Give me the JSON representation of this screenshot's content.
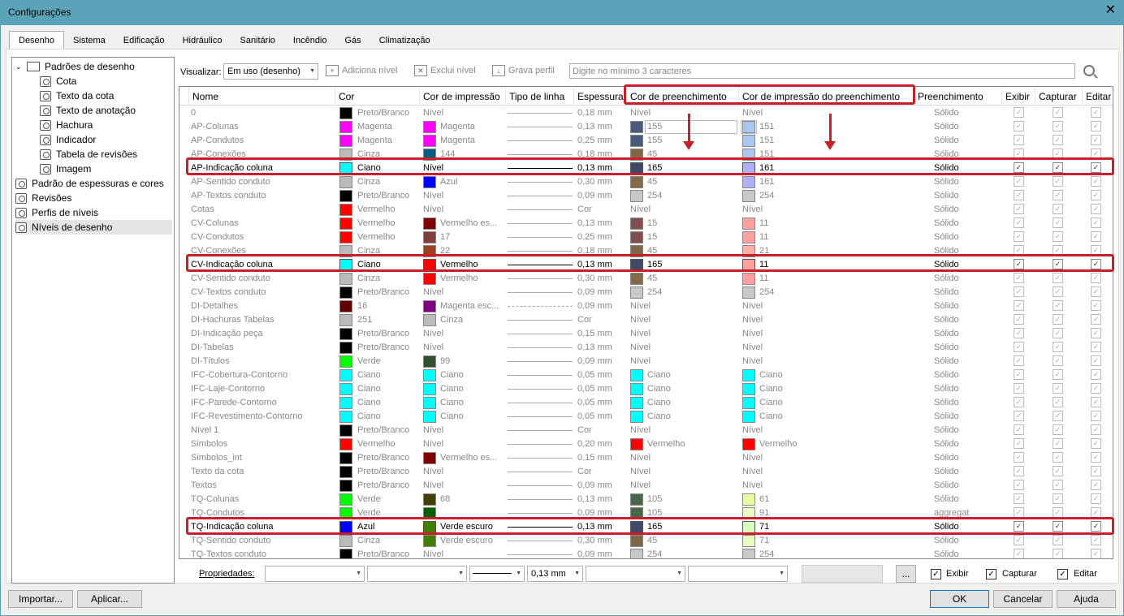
{
  "window": {
    "title": "Configurações"
  },
  "tabs": [
    "Desenho",
    "Sistema",
    "Edificação",
    "Hidráulico",
    "Sanitário",
    "Incêndio",
    "Gás",
    "Climatização"
  ],
  "tree": {
    "root": "Padrões de desenho",
    "children": [
      "Cota",
      "Texto da cota",
      "Texto de anotação",
      "Hachura",
      "Indicador",
      "Tabela de revisões",
      "Imagem"
    ],
    "top": [
      "Padrão de espessuras e cores",
      "Revisões",
      "Perfis de níveis",
      "Níveis de desenho"
    ]
  },
  "toolbar": {
    "visualizar_label": "Visualizar:",
    "visualizar_value": "Em uso (desenho)",
    "add_level": "Adiciona nível",
    "delete_level": "Exclui nível",
    "save_profile": "Grava perfil",
    "search_placeholder": "Digite no mínimo 3 caracteres"
  },
  "columns": [
    "Nome",
    "Cor",
    "Cor de impressão",
    "Tipo de linha",
    "Espessura",
    "Cor de preenchimento",
    "Cor de impressão do preenchimento",
    "Preenchimento",
    "Exibir",
    "Capturar",
    "Editar"
  ],
  "rows": [
    {
      "n": "0",
      "c": "#000000",
      "ct": "Preto/Branco",
      "p": "",
      "pt": "Nível",
      "l": "solid",
      "e": "0,18 mm",
      "f": "",
      "ft": "Nível",
      "pf": "",
      "pft": "Nível",
      "fill": "Sólido"
    },
    {
      "n": "AP-Colunas",
      "c": "#ff00ff",
      "ct": "Magenta",
      "p": "#ff00ff",
      "pt": "Magenta",
      "l": "solid",
      "e": "0,13 mm",
      "f": "#4a5a7a",
      "ft": "155",
      "pf": "#a8c8f0",
      "pft": "151",
      "fill": "Sólido",
      "box": true
    },
    {
      "n": "AP-Condutos",
      "c": "#ff00ff",
      "ct": "Magenta",
      "p": "#ff00ff",
      "pt": "Magenta",
      "l": "solid",
      "e": "0,25 mm",
      "f": "#4a5a7a",
      "ft": "155",
      "pf": "#a8c8f0",
      "pft": "151",
      "fill": "Sólido"
    },
    {
      "n": "AP-Conexões",
      "c": "#bbbbbb",
      "ct": "Cinza",
      "p": "#006080",
      "pt": "144",
      "l": "solid",
      "e": "0,18 mm",
      "f": "#806848",
      "ft": "45",
      "pf": "#a8c8f0",
      "pft": "151",
      "fill": "Sólido"
    },
    {
      "n": "AP-Indicação coluna",
      "c": "#00ffff",
      "ct": "Ciano",
      "p": "",
      "pt": "Nível",
      "l": "solid",
      "e": "0,13 mm",
      "f": "#404868",
      "ft": "165",
      "pf": "#b0b0f8",
      "pft": "161",
      "fill": "Sólido",
      "act": true
    },
    {
      "n": "AP-Sentido conduto",
      "c": "#bbbbbb",
      "ct": "Cinza",
      "p": "#0000ff",
      "pt": "Azul",
      "l": "solid",
      "e": "0,30 mm",
      "f": "#806848",
      "ft": "45",
      "pf": "#b0b0f8",
      "pft": "161",
      "fill": "Sólido"
    },
    {
      "n": "AP-Textos conduto",
      "c": "#000000",
      "ct": "Preto/Branco",
      "p": "",
      "pt": "Nível",
      "l": "solid",
      "e": "0,09 mm",
      "f": "#c8c8c8",
      "ft": "254",
      "pf": "#c8c8c8",
      "pft": "254",
      "fill": "Sólido"
    },
    {
      "n": "Cotas",
      "c": "#ff0000",
      "ct": "Vermelho",
      "p": "",
      "pt": "Nível",
      "l": "solid",
      "e": "Cor",
      "f": "",
      "ft": "Nível",
      "pf": "",
      "pft": "Nível",
      "fill": "Sólido"
    },
    {
      "n": "CV-Colunas",
      "c": "#ff0000",
      "ct": "Vermelho",
      "p": "#800000",
      "pt": "Vermelho es...",
      "l": "solid",
      "e": "0,13 mm",
      "f": "#805050",
      "ft": "15",
      "pf": "#ffa0a0",
      "pft": "11",
      "fill": "Sólido"
    },
    {
      "n": "CV-Condutos",
      "c": "#ff0000",
      "ct": "Vermelho",
      "p": "#804040",
      "pt": "17",
      "l": "solid",
      "e": "0,25 mm",
      "f": "#805050",
      "ft": "15",
      "pf": "#ffa0a0",
      "pft": "11",
      "fill": "Sólido"
    },
    {
      "n": "CV-Conexões",
      "c": "#bbbbbb",
      "ct": "Cinza",
      "p": "#a04020",
      "pt": "22",
      "l": "solid",
      "e": "0,18 mm",
      "f": "#806848",
      "ft": "45",
      "pf": "#ffb0a0",
      "pft": "21",
      "fill": "Sólido"
    },
    {
      "n": "CV-Indicação coluna",
      "c": "#00ffff",
      "ct": "Ciano",
      "p": "#ff0000",
      "pt": "Vermelho",
      "l": "solid",
      "e": "0,13 mm",
      "f": "#404868",
      "ft": "165",
      "pf": "#ffa0a0",
      "pft": "11",
      "fill": "Sólido",
      "act": true
    },
    {
      "n": "CV-Sentido conduto",
      "c": "#bbbbbb",
      "ct": "Cinza",
      "p": "#ff0000",
      "pt": "Vermelho",
      "l": "solid",
      "e": "0,30 mm",
      "f": "#806848",
      "ft": "45",
      "pf": "#ffa0a0",
      "pft": "11",
      "fill": "Sólido"
    },
    {
      "n": "CV-Textos conduto",
      "c": "#000000",
      "ct": "Preto/Branco",
      "p": "",
      "pt": "Nível",
      "l": "solid",
      "e": "0,09 mm",
      "f": "#c8c8c8",
      "ft": "254",
      "pf": "#c8c8c8",
      "pft": "254",
      "fill": "Sólido"
    },
    {
      "n": "DI-Detalhes",
      "c": "#600000",
      "ct": "16",
      "p": "#800080",
      "pt": "Magenta esc...",
      "l": "dash",
      "e": "0,09 mm",
      "f": "",
      "ft": "Nível",
      "pf": "",
      "pft": "Nível",
      "fill": "Sólido"
    },
    {
      "n": "DI-Hachuras Tabelas",
      "c": "#bbbbbb",
      "ct": "251",
      "p": "#bbbbbb",
      "pt": "Cinza",
      "l": "solid",
      "e": "Cor",
      "f": "",
      "ft": "Nível",
      "pf": "",
      "pft": "Nível",
      "fill": "Sólido"
    },
    {
      "n": "DI-Indicação peça",
      "c": "#000000",
      "ct": "Preto/Branco",
      "p": "",
      "pt": "Nível",
      "l": "solid",
      "e": "0,15 mm",
      "f": "",
      "ft": "Nível",
      "pf": "",
      "pft": "Nível",
      "fill": "Sólido"
    },
    {
      "n": "DI-Tabelas",
      "c": "#000000",
      "ct": "Preto/Branco",
      "p": "",
      "pt": "Nível",
      "l": "solid",
      "e": "0,13 mm",
      "f": "",
      "ft": "Nível",
      "pf": "",
      "pft": "Nível",
      "fill": "Sólido"
    },
    {
      "n": "DI-Títulos",
      "c": "#00ff00",
      "ct": "Verde",
      "p": "#305030",
      "pt": "99",
      "l": "solid",
      "e": "0,09 mm",
      "f": "",
      "ft": "Nível",
      "pf": "",
      "pft": "Nível",
      "fill": "Sólido"
    },
    {
      "n": "IFC-Cobertura-Contorno",
      "c": "#00ffff",
      "ct": "Ciano",
      "p": "#00ffff",
      "pt": "Ciano",
      "l": "solid",
      "e": "0,05 mm",
      "f": "#00ffff",
      "ft": "Ciano",
      "pf": "#00ffff",
      "pft": "Ciano",
      "fill": "Sólido"
    },
    {
      "n": "IFC-Laje-Contorno",
      "c": "#00ffff",
      "ct": "Ciano",
      "p": "#00ffff",
      "pt": "Ciano",
      "l": "solid",
      "e": "0,05 mm",
      "f": "#00ffff",
      "ft": "Ciano",
      "pf": "#00ffff",
      "pft": "Ciano",
      "fill": "Sólido"
    },
    {
      "n": "IFC-Parede-Contorno",
      "c": "#00ffff",
      "ct": "Ciano",
      "p": "#00ffff",
      "pt": "Ciano",
      "l": "solid",
      "e": "0,05 mm",
      "f": "#00ffff",
      "ft": "Ciano",
      "pf": "#00ffff",
      "pft": "Ciano",
      "fill": "Sólido"
    },
    {
      "n": "IFC-Revestimento-Contorno",
      "c": "#00ffff",
      "ct": "Ciano",
      "p": "#00ffff",
      "pt": "Ciano",
      "l": "solid",
      "e": "0,05 mm",
      "f": "#00ffff",
      "ft": "Ciano",
      "pf": "#00ffff",
      "pft": "Ciano",
      "fill": "Sólido"
    },
    {
      "n": "Nível 1",
      "c": "#000000",
      "ct": "Preto/Branco",
      "p": "",
      "pt": "Nível",
      "l": "solid",
      "e": "Cor",
      "f": "",
      "ft": "Nível",
      "pf": "",
      "pft": "Nível",
      "fill": "Sólido"
    },
    {
      "n": "Simbolos",
      "c": "#ff0000",
      "ct": "Vermelho",
      "p": "",
      "pt": "Nível",
      "l": "solid",
      "e": "0,20 mm",
      "f": "#ff0000",
      "ft": "Vermelho",
      "pf": "#ff0000",
      "pft": "Vermelho",
      "fill": "Sólido"
    },
    {
      "n": "Simbolos_int",
      "c": "#000000",
      "ct": "Preto/Branco",
      "p": "#800000",
      "pt": "Vermelho es...",
      "l": "solid",
      "e": "0,15 mm",
      "f": "",
      "ft": "Nível",
      "pf": "",
      "pft": "Nível",
      "fill": "Sólido"
    },
    {
      "n": "Texto da cota",
      "c": "#000000",
      "ct": "Preto/Branco",
      "p": "",
      "pt": "Nível",
      "l": "solid",
      "e": "Cor",
      "f": "",
      "ft": "Nível",
      "pf": "",
      "pft": "Nível",
      "fill": "Sólido"
    },
    {
      "n": "Textos",
      "c": "#000000",
      "ct": "Preto/Branco",
      "p": "",
      "pt": "Nível",
      "l": "solid",
      "e": "0,09 mm",
      "f": "",
      "ft": "Nível",
      "pf": "",
      "pft": "Nível",
      "fill": "Sólido"
    },
    {
      "n": "TQ-Colunas",
      "c": "#00ff00",
      "ct": "Verde",
      "p": "#404000",
      "pt": "68",
      "l": "solid",
      "e": "0,13 mm",
      "f": "#486848",
      "ft": "105",
      "pf": "#e8ffa0",
      "pft": "61",
      "fill": "Sólido"
    },
    {
      "n": "TQ-Condutos",
      "c": "#00ff00",
      "ct": "Verde",
      "p": "#006000",
      "pt": "",
      "l": "solid",
      "e": "0,09 mm",
      "f": "#486848",
      "ft": "105",
      "pf": "#e8ffc0",
      "pft": "91",
      "fill": "aggregat"
    },
    {
      "n": "TQ-Indicação coluna",
      "c": "#0000ff",
      "ct": "Azul",
      "p": "#408000",
      "pt": "Verde escuro",
      "l": "solid",
      "e": "0,13 mm",
      "f": "#404868",
      "ft": "165",
      "pf": "#d8ffc0",
      "pft": "71",
      "fill": "Sólido",
      "act": true
    },
    {
      "n": "TQ-Sentido conduto",
      "c": "#bbbbbb",
      "ct": "Cinza",
      "p": "#408000",
      "pt": "Verde escuro",
      "l": "solid",
      "e": "0,30 mm",
      "f": "#806848",
      "ft": "45",
      "pf": "#e8ffc0",
      "pft": "71",
      "fill": "Sólido"
    },
    {
      "n": "TQ-Textos conduto",
      "c": "#000000",
      "ct": "Preto/Branco",
      "p": "",
      "pt": "Nível",
      "l": "solid",
      "e": "0,09 mm",
      "f": "#c8c8c8",
      "ft": "254",
      "pf": "#c8c8c8",
      "pft": "254",
      "fill": "Sólido"
    }
  ],
  "props": {
    "label": "Propriedades:",
    "thickness": "0,13 mm",
    "more": "...",
    "show": "Exibir",
    "capture": "Capturar",
    "edit": "Editar"
  },
  "buttons": {
    "import": "Importar...",
    "apply": "Aplicar...",
    "ok": "OK",
    "cancel": "Cancelar",
    "help": "Ajuda"
  }
}
